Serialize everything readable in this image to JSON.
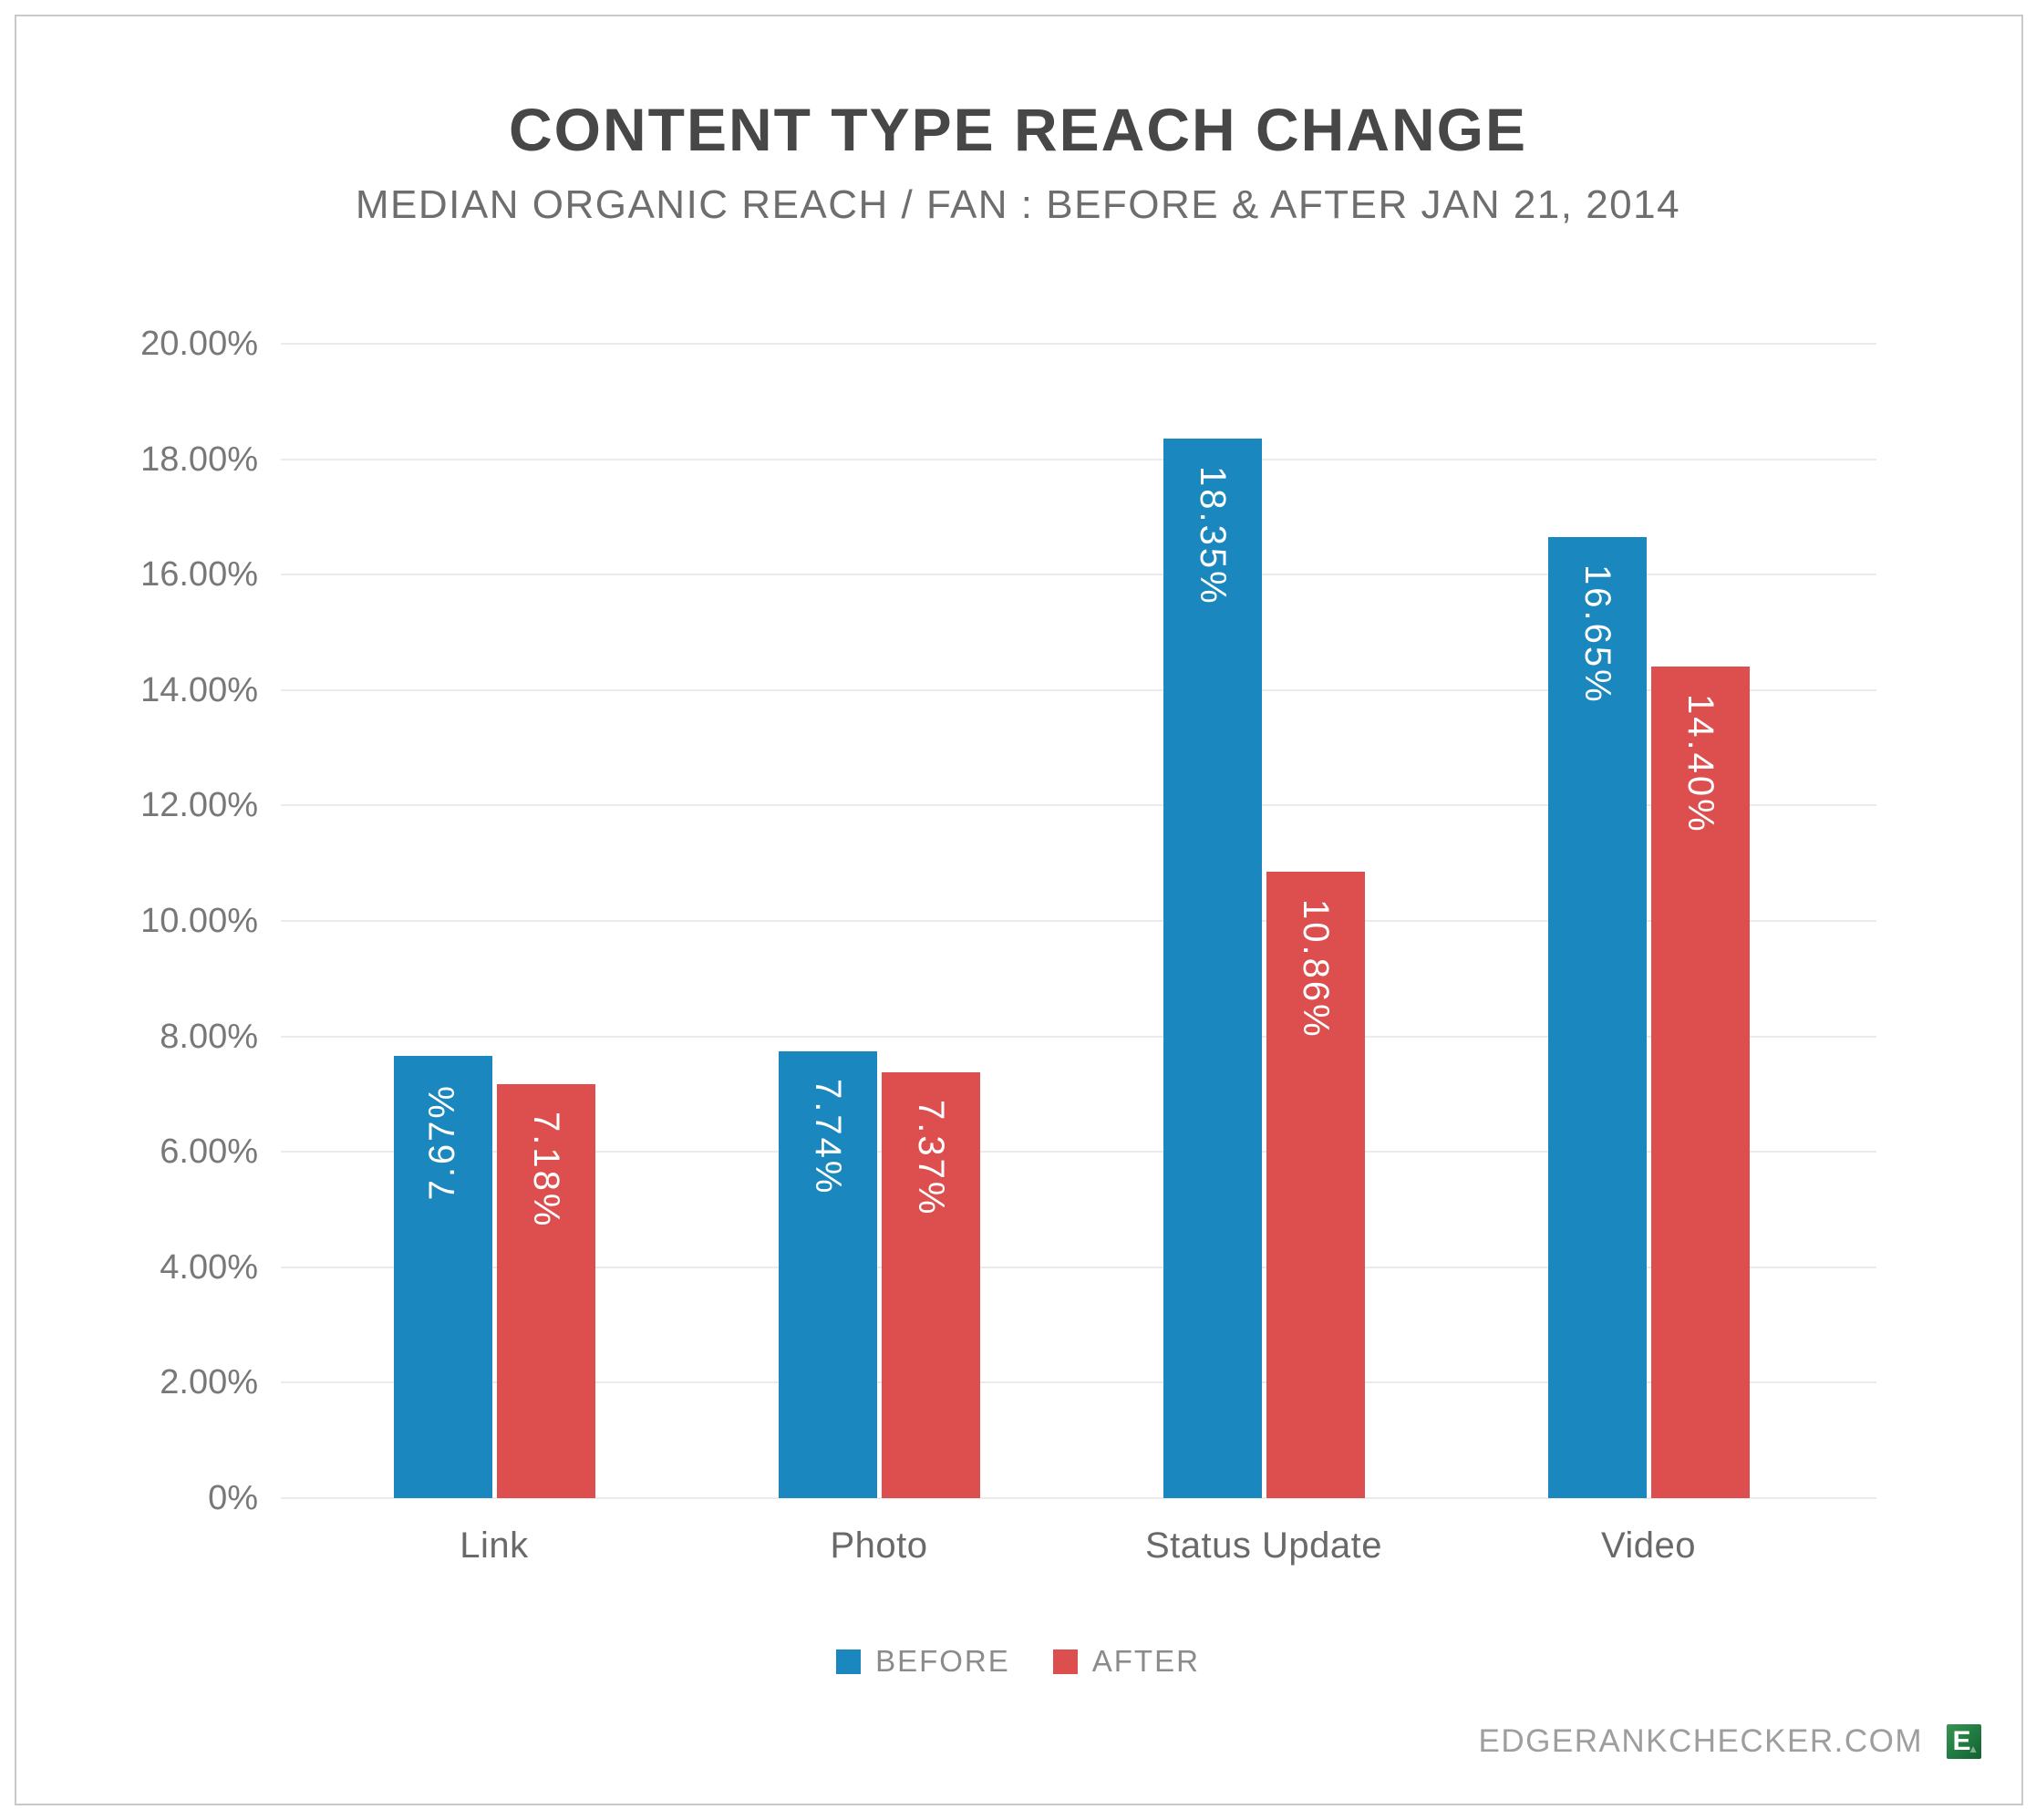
{
  "page": {
    "background_color": "#ffffff",
    "frame_border_color": "#c9c9c9"
  },
  "header": {
    "title": "CONTENT TYPE REACH CHANGE",
    "subtitle": "MEDIAN ORGANIC REACH / FAN : BEFORE & AFTER JAN 21, 2014"
  },
  "footer": {
    "site": "EDGERANKCHECKER.COM",
    "logo_letter": "E",
    "logo_color": "#1f7a40",
    "logo_arrow": "▲"
  },
  "chart_data": {
    "type": "bar",
    "title": "CONTENT TYPE REACH CHANGE",
    "subtitle": "MEDIAN ORGANIC REACH / FAN : BEFORE & AFTER JAN 21, 2014",
    "categories": [
      "Link",
      "Photo",
      "Status Update",
      "Video"
    ],
    "series": [
      {
        "name": "BEFORE",
        "color": "#1a87be",
        "values": [
          7.67,
          7.74,
          18.35,
          16.65
        ],
        "labels": [
          "7.67%",
          "7.74%",
          "18.35%",
          "16.65%"
        ]
      },
      {
        "name": "AFTER",
        "color": "#dd4f4e",
        "values": [
          7.18,
          7.37,
          10.86,
          14.4
        ],
        "labels": [
          "7.18%",
          "7.37%",
          "10.86%",
          "14.40%"
        ]
      }
    ],
    "xlabel": "",
    "ylabel": "",
    "ylim": [
      0,
      20
    ],
    "yticks": [
      {
        "value": 20,
        "label": "20.00%"
      },
      {
        "value": 18,
        "label": "18.00%"
      },
      {
        "value": 16,
        "label": "16.00%"
      },
      {
        "value": 14,
        "label": "14.00%"
      },
      {
        "value": 12,
        "label": "12.00%"
      },
      {
        "value": 10,
        "label": "10.00%"
      },
      {
        "value": 8,
        "label": "8.00%"
      },
      {
        "value": 6,
        "label": "6.00%"
      },
      {
        "value": 4,
        "label": "4.00%"
      },
      {
        "value": 2,
        "label": "2.00%"
      },
      {
        "value": 0,
        "label": "0%"
      }
    ],
    "grid": "horizontal",
    "gridline_color": "#ebebeb",
    "legend_position": "bottom",
    "value_label_rotation": "vertical",
    "value_label_color": "#ffffff",
    "flipped_value_labels": [
      {
        "series": "BEFORE",
        "category": "Link"
      }
    ]
  }
}
